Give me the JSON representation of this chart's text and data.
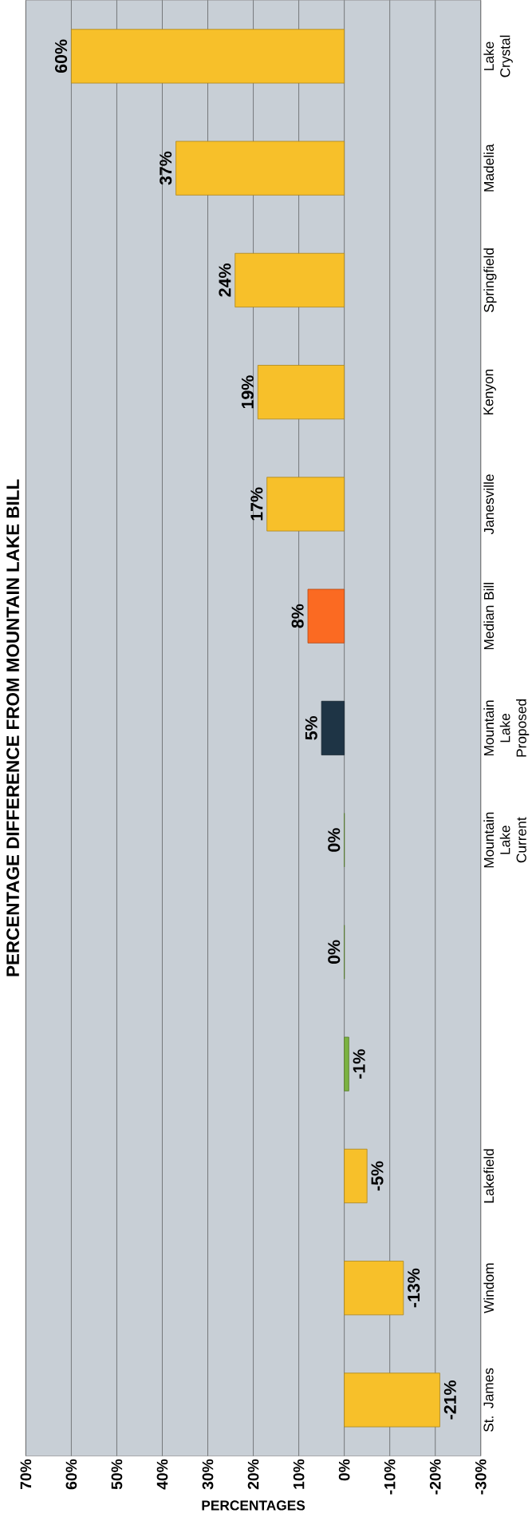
{
  "chart_data": {
    "type": "bar",
    "orientation": "horizontal",
    "title": "PERCENTAGE DIFFERENCE FROM MOUNTAIN LAKE BILL",
    "xlabel": "PERCENTAGES",
    "categories": [
      "Lake Crystal",
      "Madelia",
      "Springfield",
      "Kenyon",
      "Janesville",
      "Median Bill",
      "Mountain Lake Proposed",
      "Mountain Lake Current",
      null,
      null,
      "Lakefield",
      "Windom",
      "St. James"
    ],
    "values": [
      60,
      37,
      24,
      19,
      17,
      8,
      5,
      0,
      0,
      -1,
      -5,
      -13,
      -21
    ],
    "colors": [
      "#f7c02a",
      "#f7c02a",
      "#f7c02a",
      "#f7c02a",
      "#f7c02a",
      "#fb6a22",
      "#1e3445",
      "#7cb342",
      "#7cb342",
      "#7cb342",
      "#f7c02a",
      "#f7c02a",
      "#f7c02a"
    ],
    "value_labels": [
      "60%",
      "37%",
      "24%",
      "19%",
      "17%",
      "8%",
      "5%",
      "0%",
      "0%",
      "-1%",
      "-5%",
      "-13%",
      "-21%"
    ],
    "xlim": [
      70,
      -30
    ],
    "xticks": [
      {
        "value": 70,
        "label": "70%"
      },
      {
        "value": 60,
        "label": "60%"
      },
      {
        "value": 50,
        "label": "50%"
      },
      {
        "value": 40,
        "label": "40%"
      },
      {
        "value": 30,
        "label": "30%"
      },
      {
        "value": 20,
        "label": "20%"
      },
      {
        "value": 10,
        "label": "10%"
      },
      {
        "value": 0,
        "label": "0%"
      },
      {
        "value": -10,
        "label": "-10%"
      },
      {
        "value": -20,
        "label": "-20%"
      },
      {
        "value": -30,
        "label": "-30%"
      }
    ],
    "grid": "x"
  }
}
